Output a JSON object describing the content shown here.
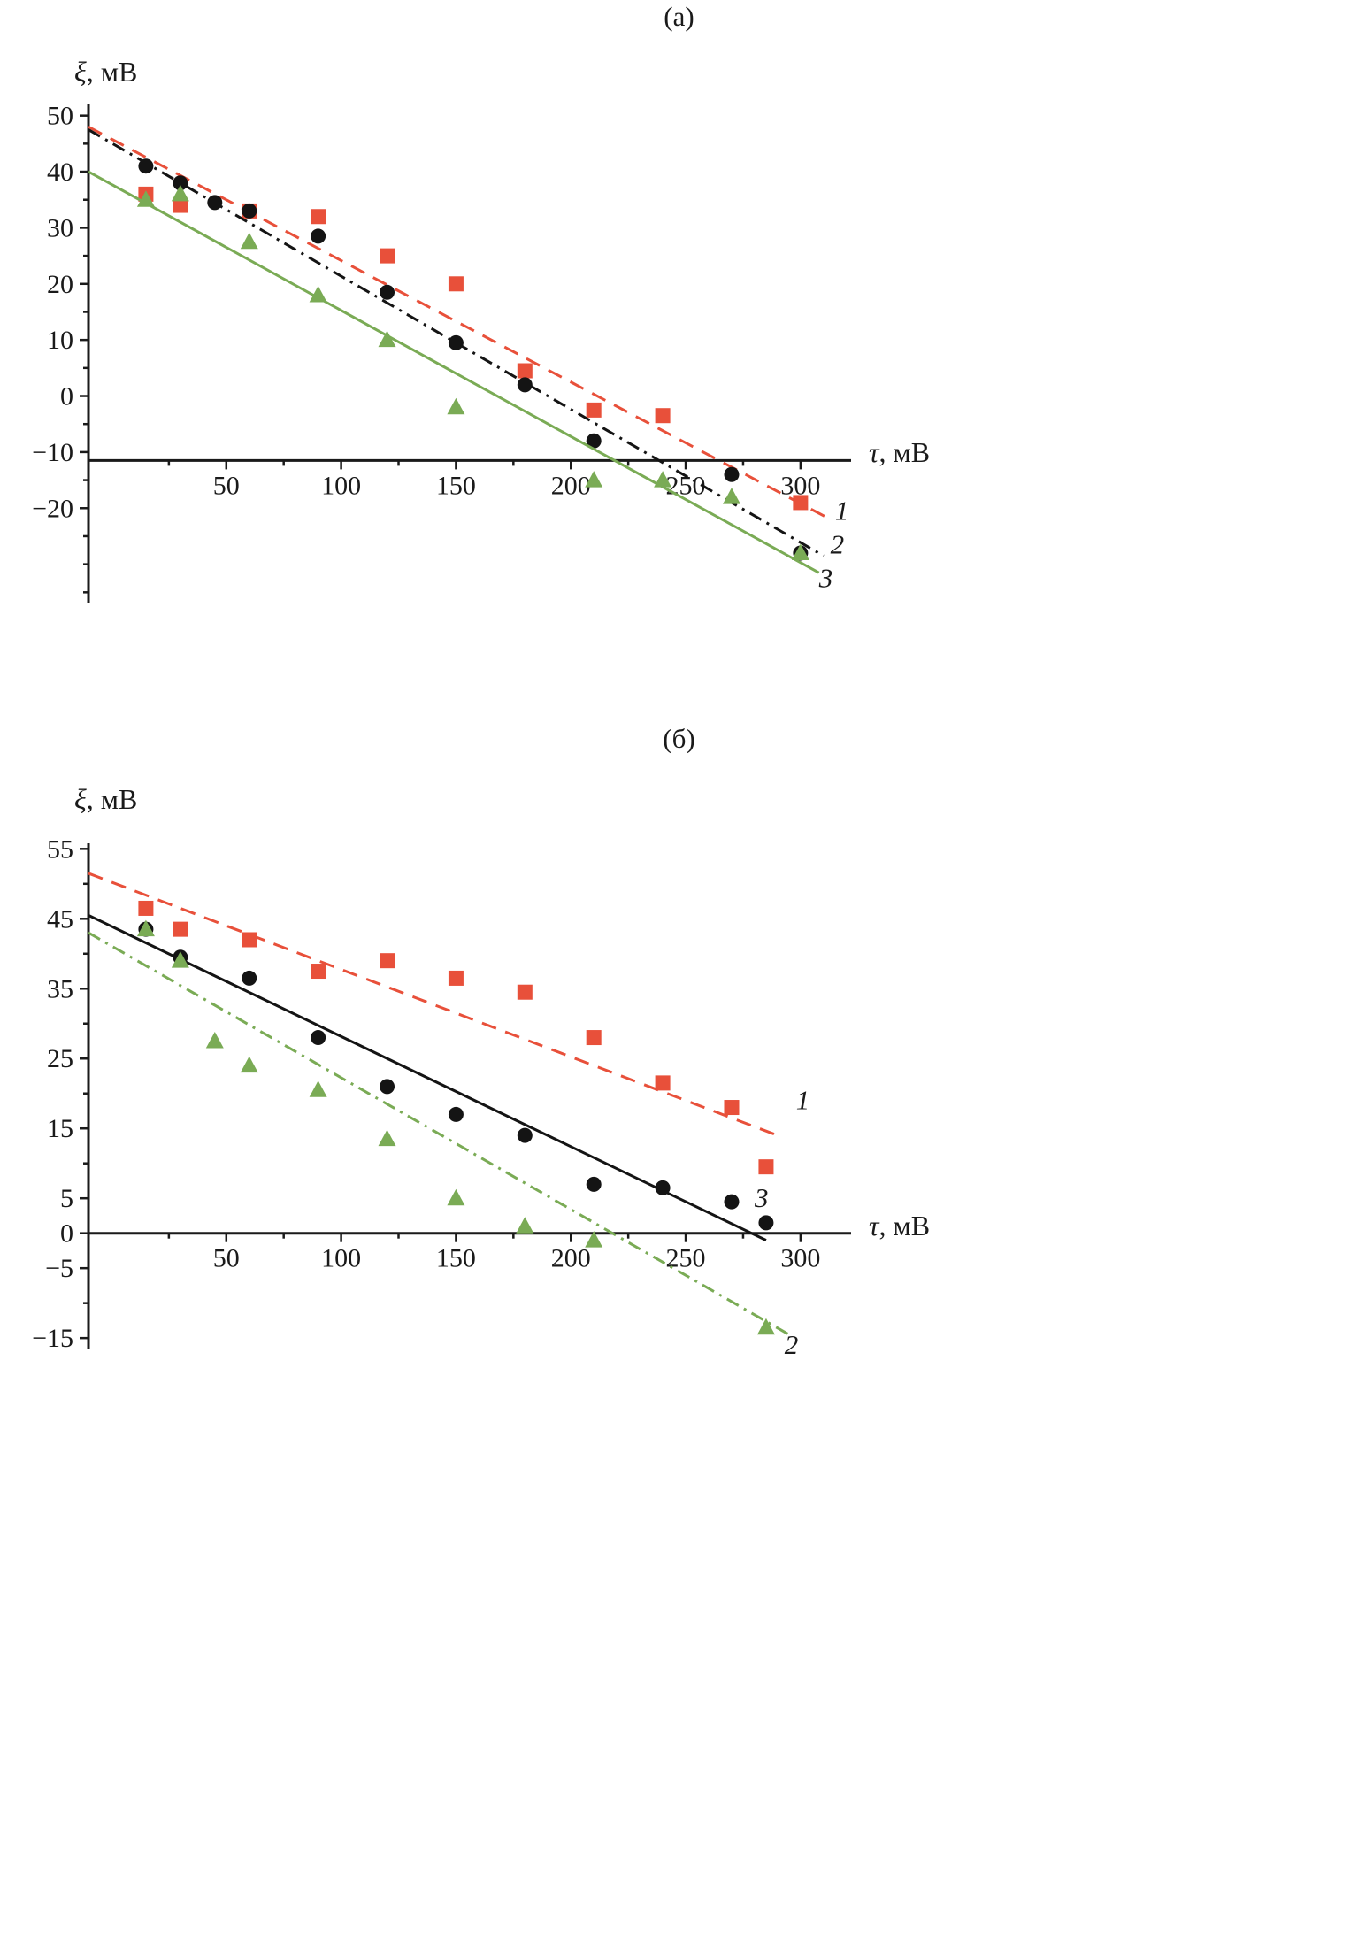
{
  "figure": {
    "background": "#ffffff",
    "ink_color": "#1a1a1a"
  },
  "chart_data": [
    {
      "type": "scatter",
      "panel_label": "(а)",
      "title": "(а)",
      "ylabel": "ξ, мВ",
      "ylabel_var": "ξ",
      "ylabel_unit": ", мВ",
      "xlabel": "τ, мВ",
      "xlabel_var": "τ",
      "xlabel_unit": ", мВ",
      "xlim": [
        -10,
        322
      ],
      "ylim": [
        -37,
        52
      ],
      "x_axis_at_y": -11.5,
      "xticks": [
        50,
        100,
        150,
        200,
        250,
        300
      ],
      "xtick_minor_step": 25,
      "yticks": [
        50,
        40,
        30,
        20,
        10,
        0,
        -10,
        -20
      ],
      "ytick_minor_step": 5,
      "grid": false,
      "legend_position": "line-end-labels",
      "series": [
        {
          "name": "1",
          "marker": "square",
          "color": "#e8503a",
          "line_style": "dashed",
          "points": [
            [
              15,
              36
            ],
            [
              30,
              34
            ],
            [
              60,
              33
            ],
            [
              90,
              32
            ],
            [
              120,
              25
            ],
            [
              150,
              20
            ],
            [
              180,
              4.5
            ],
            [
              210,
              -2.5
            ],
            [
              240,
              -3.5
            ],
            [
              300,
              -19
            ]
          ],
          "trend": [
            [
              -10,
              48
            ],
            [
              313,
              -22
            ]
          ],
          "label": "1",
          "label_at": [
            318,
            -20.5
          ]
        },
        {
          "name": "2",
          "marker": "circle",
          "color": "#141414",
          "line_style": "dashdot",
          "points": [
            [
              15,
              41
            ],
            [
              30,
              38
            ],
            [
              45,
              34.5
            ],
            [
              60,
              33
            ],
            [
              90,
              28.5
            ],
            [
              120,
              18.5
            ],
            [
              150,
              9.5
            ],
            [
              180,
              2
            ],
            [
              210,
              -8
            ],
            [
              270,
              -14
            ],
            [
              300,
              -28
            ]
          ],
          "trend": [
            [
              -10,
              47.5
            ],
            [
              310,
              -28.5
            ]
          ],
          "label": "2",
          "label_at": [
            316,
            -26.5
          ]
        },
        {
          "name": "3",
          "marker": "triangle",
          "color": "#7aab55",
          "line_style": "solid",
          "points": [
            [
              15,
              35
            ],
            [
              30,
              36
            ],
            [
              60,
              27.5
            ],
            [
              90,
              18
            ],
            [
              120,
              10
            ],
            [
              150,
              -2
            ],
            [
              210,
              -15
            ],
            [
              240,
              -15
            ],
            [
              270,
              -18
            ],
            [
              300,
              -28
            ]
          ],
          "trend": [
            [
              -10,
              40
            ],
            [
              308,
              -31.5
            ]
          ],
          "label": "3",
          "label_at": [
            311,
            -32.5
          ]
        }
      ]
    },
    {
      "type": "scatter",
      "panel_label": "(б)",
      "title": "(б)",
      "ylabel": "ξ, мВ",
      "ylabel_var": "ξ",
      "ylabel_unit": ", мВ",
      "xlabel": "τ, мВ",
      "xlabel_var": "τ",
      "xlabel_unit": ", мВ",
      "xlim": [
        -10,
        322
      ],
      "ylim": [
        -16.5,
        55.8
      ],
      "x_axis_at_y": 0,
      "xticks": [
        50,
        100,
        150,
        200,
        250,
        300
      ],
      "xtick_minor_step": 25,
      "yticks": [
        55,
        45,
        35,
        25,
        15,
        5,
        0,
        -5,
        -15
      ],
      "ytick_minor_step": 5,
      "grid": false,
      "legend_position": "line-end-labels",
      "series": [
        {
          "name": "1",
          "marker": "square",
          "color": "#e8503a",
          "line_style": "dashed",
          "points": [
            [
              15,
              46.5
            ],
            [
              30,
              43.5
            ],
            [
              60,
              42
            ],
            [
              90,
              37.5
            ],
            [
              120,
              39
            ],
            [
              150,
              36.5
            ],
            [
              180,
              34.5
            ],
            [
              210,
              28
            ],
            [
              240,
              21.5
            ],
            [
              270,
              18
            ],
            [
              285,
              9.5
            ]
          ],
          "trend": [
            [
              -10,
              51.5
            ],
            [
              290,
              14
            ]
          ],
          "label": "1",
          "label_at": [
            301,
            19
          ]
        },
        {
          "name": "3",
          "marker": "circle",
          "color": "#141414",
          "line_style": "solid",
          "points": [
            [
              15,
              43.5
            ],
            [
              30,
              39.5
            ],
            [
              60,
              36.5
            ],
            [
              90,
              28
            ],
            [
              120,
              21
            ],
            [
              150,
              17
            ],
            [
              180,
              14
            ],
            [
              210,
              7
            ],
            [
              240,
              6.5
            ],
            [
              270,
              4.5
            ],
            [
              285,
              1.5
            ]
          ],
          "trend": [
            [
              -10,
              45.5
            ],
            [
              285,
              -1
            ]
          ],
          "label": "3",
          "label_at": [
            283,
            5
          ]
        },
        {
          "name": "2",
          "marker": "triangle",
          "color": "#7aab55",
          "line_style": "dashdot",
          "points": [
            [
              15,
              43.5
            ],
            [
              30,
              39
            ],
            [
              45,
              27.5
            ],
            [
              60,
              24
            ],
            [
              90,
              20.5
            ],
            [
              120,
              13.5
            ],
            [
              150,
              5
            ],
            [
              180,
              1
            ],
            [
              210,
              -1
            ],
            [
              285,
              -13.5
            ]
          ],
          "trend": [
            [
              -10,
              43
            ],
            [
              295,
              -14.5
            ]
          ],
          "label": "2",
          "label_at": [
            296,
            -16
          ]
        }
      ]
    }
  ]
}
